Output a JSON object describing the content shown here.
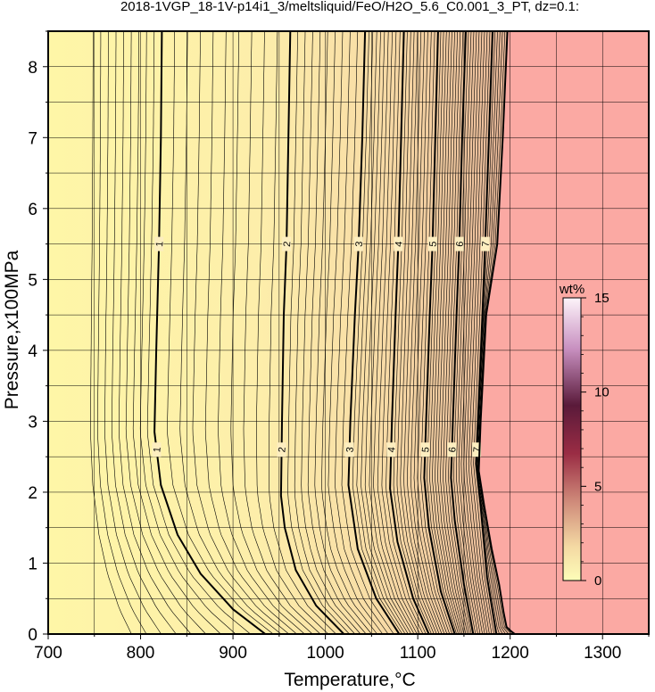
{
  "chart_data": {
    "type": "contour",
    "title": "2018-1VGP_18-1V-p14i1_3/meltsliquid/FeO/H2O_5.6_C0.001_3_PT, dz=0.1:",
    "xlabel": "Temperature,°C",
    "ylabel": "Pressure,x100MPa",
    "xlim": [
      700,
      1350
    ],
    "ylim": [
      0,
      8.5
    ],
    "x_ticks": [
      700,
      800,
      900,
      1000,
      1100,
      1200,
      1300
    ],
    "y_ticks": [
      0,
      1,
      2,
      3,
      4,
      5,
      6,
      7,
      8
    ],
    "grid": true,
    "colorbar": {
      "label": "wt%",
      "ticks": [
        0,
        5,
        10,
        15
      ],
      "range": [
        0,
        15
      ],
      "colors": [
        "#fdfdb8",
        "#f4d9a3",
        "#cf8a7a",
        "#9a2c44",
        "#5a1a3a",
        "#c890c0",
        "#fdf4fa"
      ]
    },
    "region_colors": {
      "liquid_free": "#fdf6a6",
      "above_liquidus": "#fba9a3"
    },
    "major_contours": [
      {
        "label": "1",
        "points": [
          [
            935,
            0
          ],
          [
            900,
            0.35
          ],
          [
            865,
            0.85
          ],
          [
            840,
            1.4
          ],
          [
            822,
            2.1
          ],
          [
            815,
            2.85
          ],
          [
            817,
            4
          ],
          [
            820,
            5.5
          ],
          [
            822,
            7
          ],
          [
            823,
            8.5
          ]
        ]
      },
      {
        "label": "2",
        "points": [
          [
            1020,
            0
          ],
          [
            990,
            0.4
          ],
          [
            968,
            0.9
          ],
          [
            956,
            1.5
          ],
          [
            952,
            1.95
          ],
          [
            953,
            3
          ],
          [
            955,
            4.5
          ],
          [
            958,
            5.5
          ],
          [
            960,
            7
          ],
          [
            962,
            8.5
          ]
        ]
      },
      {
        "label": "3",
        "points": [
          [
            1080,
            0
          ],
          [
            1055,
            0.5
          ],
          [
            1035,
            1.2
          ],
          [
            1025,
            2.1
          ],
          [
            1027,
            3
          ],
          [
            1032,
            4.5
          ],
          [
            1036,
            5.5
          ],
          [
            1040,
            7
          ],
          [
            1043,
            8.5
          ]
        ]
      },
      {
        "label": "4",
        "points": [
          [
            1112,
            0
          ],
          [
            1095,
            0.5
          ],
          [
            1078,
            1.3
          ],
          [
            1070,
            2.05
          ],
          [
            1072,
            3
          ],
          [
            1076,
            4.5
          ],
          [
            1079,
            5.5
          ],
          [
            1082,
            7
          ],
          [
            1085,
            8.5
          ]
        ]
      },
      {
        "label": "5",
        "points": [
          [
            1140,
            0
          ],
          [
            1125,
            0.6
          ],
          [
            1112,
            1.5
          ],
          [
            1107,
            2.2
          ],
          [
            1109,
            3
          ],
          [
            1113,
            4.5
          ],
          [
            1116,
            5.5
          ],
          [
            1119,
            7
          ],
          [
            1122,
            8.5
          ]
        ]
      },
      {
        "label": "6",
        "points": [
          [
            1160,
            0
          ],
          [
            1150,
            0.7
          ],
          [
            1140,
            1.6
          ],
          [
            1136,
            2.2
          ],
          [
            1138,
            3
          ],
          [
            1142,
            4.5
          ],
          [
            1145,
            5.5
          ],
          [
            1148,
            7
          ],
          [
            1152,
            8.5
          ]
        ]
      },
      {
        "label": "7",
        "points": [
          [
            1185,
            0
          ],
          [
            1175,
            0.8
          ],
          [
            1168,
            1.8
          ],
          [
            1163,
            2.4
          ],
          [
            1165,
            3
          ],
          [
            1170,
            4.5
          ],
          [
            1173,
            5.5
          ],
          [
            1177,
            7
          ],
          [
            1181,
            8.5
          ]
        ]
      }
    ],
    "liquidus_boundary": [
      [
        1205,
        0
      ],
      [
        1200,
        0.05
      ],
      [
        1196,
        0.1
      ],
      [
        1193,
        0.3
      ],
      [
        1188,
        0.7
      ],
      [
        1180,
        1.2
      ],
      [
        1172,
        1.8
      ],
      [
        1166,
        2.3
      ],
      [
        1168,
        3
      ],
      [
        1174,
        4.5
      ],
      [
        1186,
        5.5
      ],
      [
        1192,
        7
      ],
      [
        1197,
        8.5
      ]
    ]
  }
}
